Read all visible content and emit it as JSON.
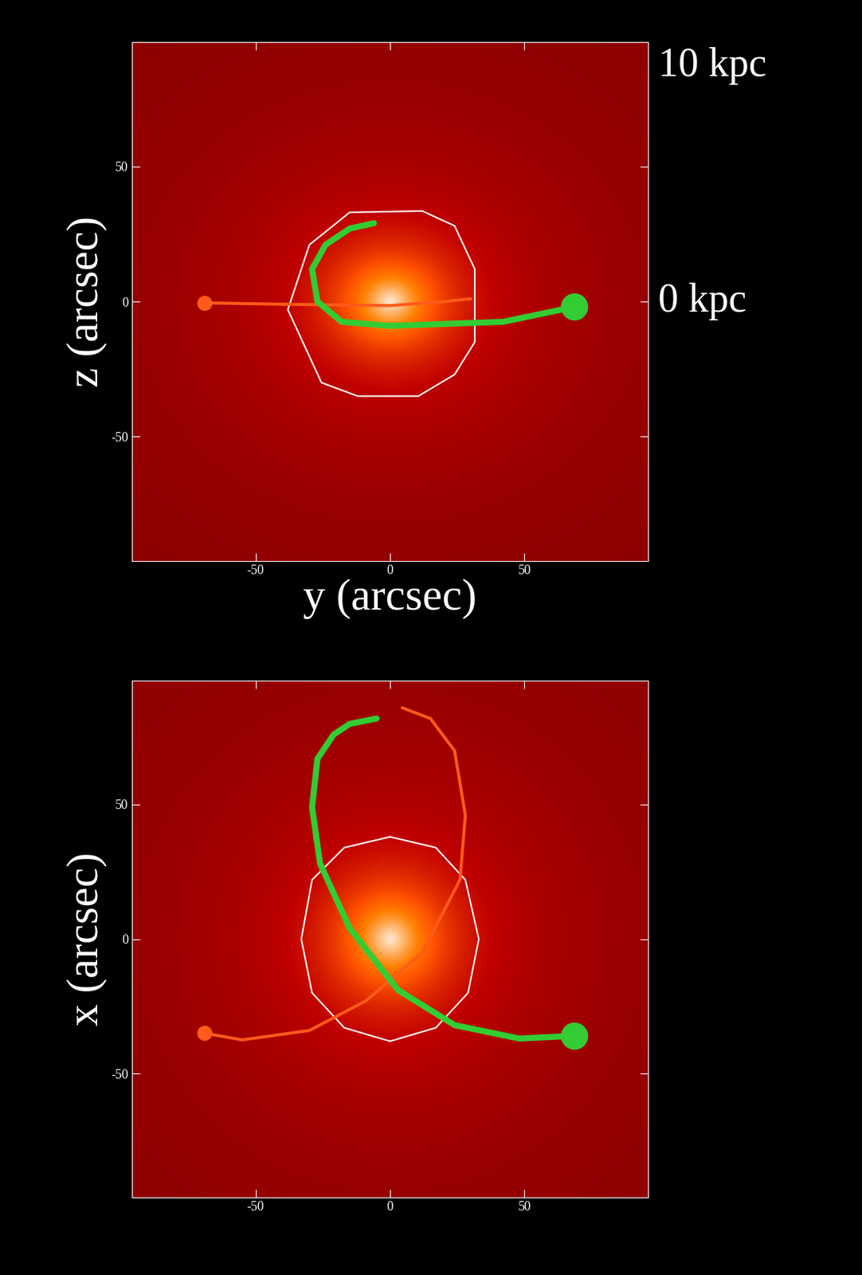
{
  "chart_data": [
    {
      "type": "line",
      "x_label": "y (arcsec)",
      "y_label": "z (arcsec)",
      "xlim": [
        -96,
        96
      ],
      "ylim": [
        -96,
        96
      ],
      "xticks": [
        -50,
        0,
        50
      ],
      "yticks": [
        -50,
        0,
        50
      ],
      "annotations": [
        "10 kpc",
        "0 kpc"
      ],
      "series": [
        {
          "color": "#ffffff",
          "line_style": "solid",
          "x": [
            -15,
            12,
            24,
            31.5,
            31.5,
            24,
            10.5,
            -12,
            -25.5,
            -38,
            -30,
            -15
          ],
          "y": [
            33,
            33.5,
            28,
            12,
            -15,
            -27,
            -35,
            -35,
            -30,
            -3,
            21,
            33
          ]
        },
        {
          "color": "#ff5a1a",
          "line_style": "solid",
          "marker": "circle",
          "x": [
            -69,
            -40,
            0,
            20,
            30
          ],
          "y": [
            -0.5,
            -1,
            -1.5,
            0,
            1
          ]
        },
        {
          "color": "#33cc33",
          "line_style": "solid",
          "marker": "circle",
          "x": [
            68.5,
            42,
            0,
            -18,
            -27,
            -29,
            -24,
            -15,
            -6
          ],
          "y": [
            -2,
            -7.5,
            -9,
            -7.5,
            0,
            12,
            21,
            27,
            29
          ]
        }
      ]
    },
    {
      "type": "line",
      "y_label": "x (arcsec)",
      "xlim": [
        -96,
        96
      ],
      "ylim": [
        -96,
        96
      ],
      "xticks": [
        -50,
        0,
        50
      ],
      "yticks": [
        -50,
        0,
        50
      ],
      "series": [
        {
          "color": "#ffffff",
          "line_style": "solid",
          "x": [
            0,
            17,
            28,
            33,
            29,
            17,
            0,
            -17,
            -29,
            -33,
            -29,
            -17,
            0
          ],
          "y": [
            38,
            34,
            22,
            0,
            -20,
            -33,
            -38,
            -33,
            -20,
            0,
            22,
            34,
            38
          ]
        },
        {
          "color": "#ff5a1a",
          "line_style": "solid",
          "marker": "circle",
          "x": [
            -69,
            -55,
            -30,
            -9,
            12,
            26,
            28,
            24,
            15,
            4.5
          ],
          "y": [
            -35,
            -37.5,
            -34,
            -23,
            -5,
            22,
            46,
            70,
            82,
            86
          ]
        },
        {
          "color": "#33cc33",
          "line_style": "solid",
          "marker": "circle",
          "x": [
            68.5,
            48,
            24,
            3,
            -15,
            -26,
            -29,
            -27,
            -21,
            -15,
            -5
          ],
          "y": [
            -36,
            -37,
            -32,
            -19,
            4,
            28,
            49,
            67,
            76,
            80,
            82
          ]
        }
      ]
    }
  ]
}
